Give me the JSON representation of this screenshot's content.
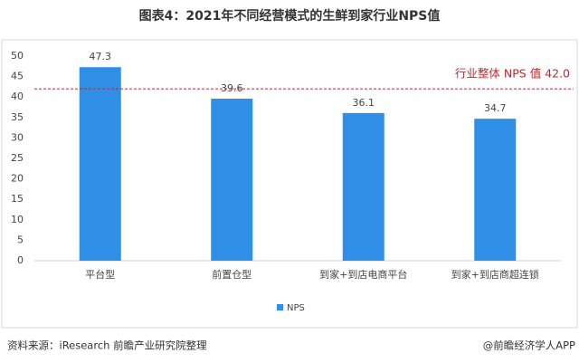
{
  "chart_data": {
    "type": "bar",
    "title": "图表4：2021年不同经营模式的生鲜到家行业NPS值",
    "categories": [
      "平台型",
      "前置仓型",
      "到家+到店电商平台",
      "到家+到店商超连锁"
    ],
    "series": [
      {
        "name": "NPS",
        "color": "#2f8fe6",
        "values": [
          47.3,
          39.6,
          36.1,
          34.7
        ]
      }
    ],
    "ylim": [
      0,
      50
    ],
    "yticks": [
      0,
      5,
      10,
      15,
      20,
      25,
      30,
      35,
      40,
      45,
      50
    ],
    "grid": false,
    "reference_line": {
      "value": 42,
      "color": "#c0282d",
      "label": "行业整体 NPS 值 42.0"
    },
    "legend": "bottom",
    "source": "资料来源：iResearch 前瞻产业研究院整理",
    "credit": "@前瞻经济学人APP"
  }
}
